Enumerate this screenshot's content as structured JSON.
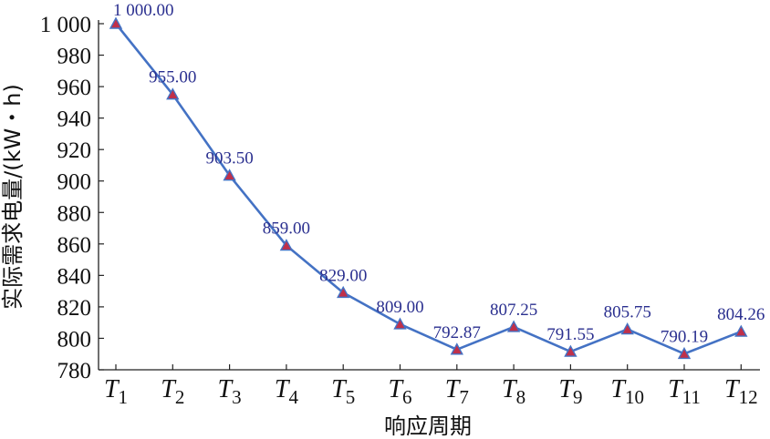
{
  "chart_data": {
    "type": "line",
    "categories": [
      "T1",
      "T2",
      "T3",
      "T4",
      "T5",
      "T6",
      "T7",
      "T8",
      "T9",
      "T10",
      "T11",
      "T12"
    ],
    "category_labels": [
      {
        "main": "T",
        "sub": "1"
      },
      {
        "main": "T",
        "sub": "2"
      },
      {
        "main": "T",
        "sub": "3"
      },
      {
        "main": "T",
        "sub": "4"
      },
      {
        "main": "T",
        "sub": "5"
      },
      {
        "main": "T",
        "sub": "6"
      },
      {
        "main": "T",
        "sub": "7"
      },
      {
        "main": "T",
        "sub": "8"
      },
      {
        "main": "T",
        "sub": "9"
      },
      {
        "main": "T",
        "sub": "10"
      },
      {
        "main": "T",
        "sub": "11"
      },
      {
        "main": "T",
        "sub": "12"
      }
    ],
    "series": [
      {
        "values": [
          1000.0,
          955.0,
          903.5,
          859.0,
          829.0,
          809.0,
          792.87,
          807.25,
          791.55,
          805.75,
          790.19,
          804.26
        ],
        "labels": [
          "1 000.00",
          "955.00",
          "903.50",
          "859.00",
          "829.00",
          "809.00",
          "792.87",
          "807.25",
          "791.55",
          "805.75",
          "790.19",
          "804.26"
        ],
        "line_color": "#4472c4",
        "marker_color": "#c0304a",
        "marker": "triangle"
      }
    ],
    "xlabel": "响应周期",
    "ylabel": "实际需求电量/(kW・h)",
    "ylim": [
      780,
      1000
    ],
    "yticks": [
      780,
      800,
      820,
      840,
      860,
      880,
      900,
      920,
      940,
      960,
      980,
      1000
    ],
    "ytick_labels": [
      "780",
      "800",
      "820",
      "840",
      "860",
      "880",
      "900",
      "920",
      "940",
      "960",
      "980",
      "1 000"
    ],
    "label_color": "#2a2f8f",
    "grid": false,
    "legend": "none"
  }
}
